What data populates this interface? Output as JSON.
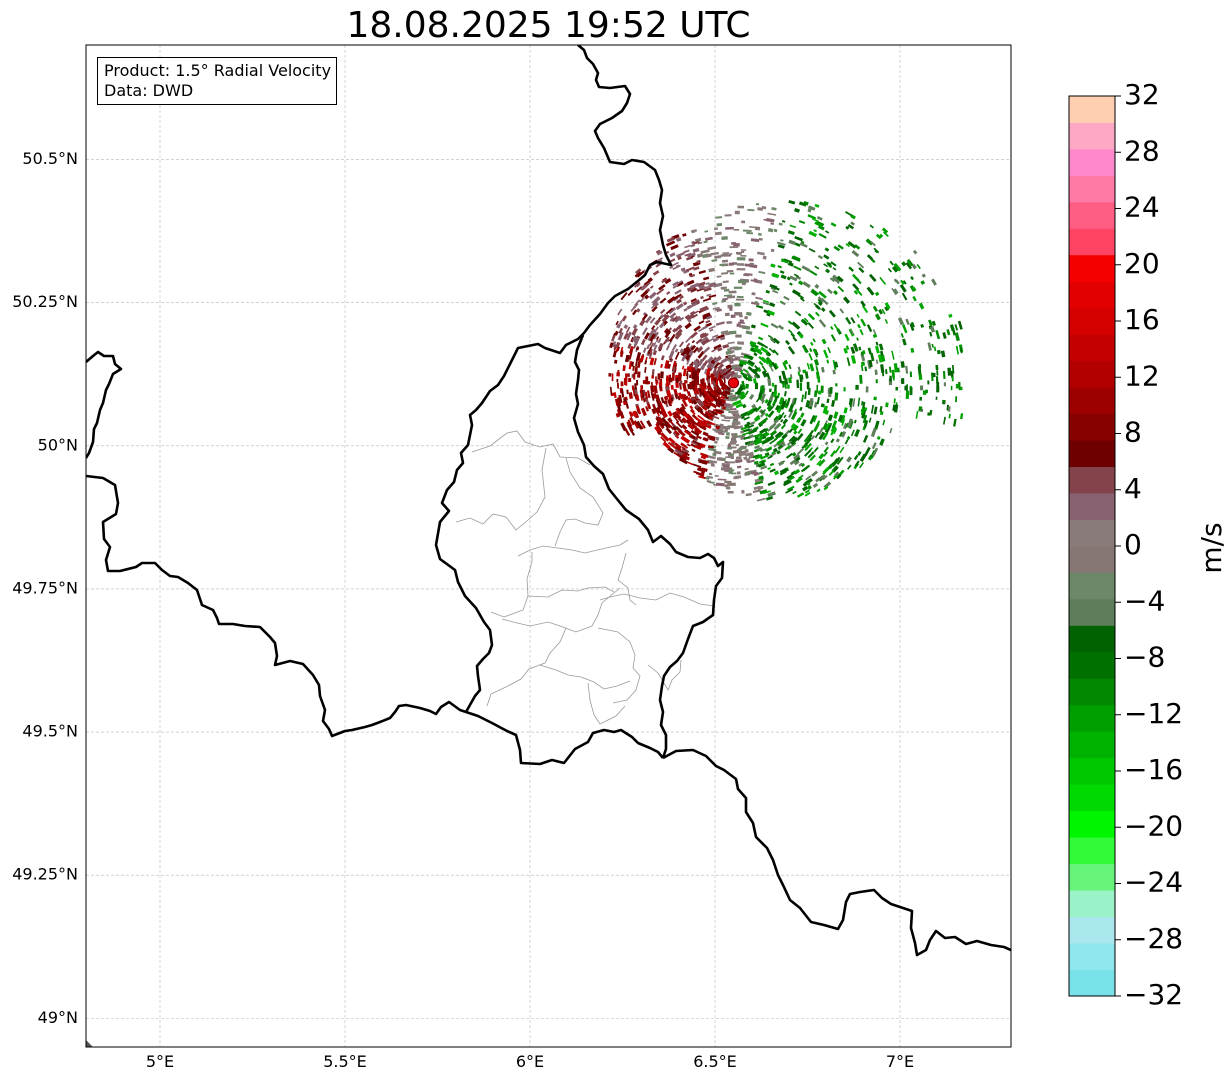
{
  "title": "18.08.2025 19:52 UTC",
  "info_box": {
    "product": "Product: 1.5° Radial Velocity",
    "data": "Data: DWD"
  },
  "map": {
    "lon_range": [
      4.8,
      7.3
    ],
    "lat_range": [
      48.95,
      50.7
    ],
    "lat_labels": [
      {
        "lat": 50.5,
        "text": "50.5°N"
      },
      {
        "lat": 50.25,
        "text": "50.25°N"
      },
      {
        "lat": 50.0,
        "text": "50°N"
      },
      {
        "lat": 49.75,
        "text": "49.75°N"
      },
      {
        "lat": 49.5,
        "text": "49.5°N"
      },
      {
        "lat": 49.25,
        "text": "49.25°N"
      },
      {
        "lat": 49.0,
        "text": "49°N"
      }
    ],
    "lon_labels": [
      {
        "lon": 5.0,
        "text": "5°E"
      },
      {
        "lon": 5.5,
        "text": "5.5°E"
      },
      {
        "lon": 6.0,
        "text": "6°E"
      },
      {
        "lon": 6.5,
        "text": "6.5°E"
      },
      {
        "lon": 7.0,
        "text": "7°E"
      }
    ],
    "grid": true,
    "radar_site": {
      "lon": 6.55,
      "lat": 50.11,
      "marker_color": "#e8000b"
    }
  },
  "colorbar": {
    "label": "m/s",
    "min": -32,
    "max": 32,
    "ticks": [
      "32",
      "28",
      "24",
      "20",
      "16",
      "12",
      "8",
      "4",
      "0",
      "−4",
      "−8",
      "−12",
      "−16",
      "−20",
      "−24",
      "−28",
      "−32"
    ],
    "colors_bottom_to_top": [
      "#77e3e8",
      "#8fe6ec",
      "#abe8ee",
      "#9af2c8",
      "#66f57a",
      "#33fa38",
      "#00f500",
      "#00da00",
      "#00c800",
      "#00b200",
      "#009f00",
      "#008800",
      "#007000",
      "#006200",
      "#5e7e5a",
      "#6d8769",
      "#867774",
      "#8a7b7b",
      "#886270",
      "#84424a",
      "#6e0000",
      "#880000",
      "#9e0000",
      "#b20000",
      "#c40000",
      "#d50000",
      "#e30000",
      "#f50000",
      "#ff4463",
      "#ff5e84",
      "#ff7aa5",
      "#ff88cc",
      "#ffa8c6",
      "#ffd0b0"
    ]
  }
}
